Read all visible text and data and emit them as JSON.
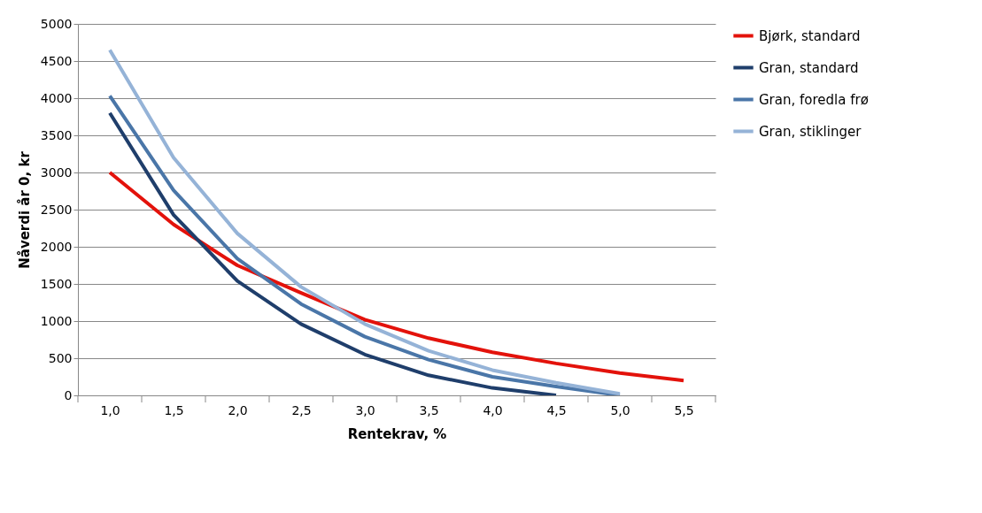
{
  "chart_data": {
    "type": "line",
    "xlabel": "Rentekrav, %",
    "ylabel": "Nåverdi år 0, kr",
    "categories": [
      "1,0",
      "1,5",
      "2,0",
      "2,5",
      "3,0",
      "3,5",
      "4,0",
      "4,5",
      "5,0",
      "5,5"
    ],
    "series": [
      {
        "name": "Bjørk, standard",
        "color": "#e3120b",
        "values": [
          3000,
          2300,
          1750,
          1380,
          1020,
          770,
          580,
          430,
          300,
          200
        ]
      },
      {
        "name": "Gran, standard",
        "color": "#1f3e6b",
        "values": [
          3800,
          2430,
          1540,
          960,
          550,
          270,
          100,
          0,
          null,
          null
        ]
      },
      {
        "name": "Gran, foredla frø",
        "color": "#4a76a8",
        "values": [
          4030,
          2760,
          1840,
          1230,
          790,
          480,
          250,
          120,
          0,
          null
        ]
      },
      {
        "name": "Gran, stiklinger",
        "color": "#95b3d7",
        "values": [
          4650,
          3200,
          2180,
          1460,
          960,
          600,
          340,
          170,
          20,
          null
        ]
      }
    ],
    "ylim": [
      0,
      5000
    ],
    "yticks": [
      0,
      500,
      1000,
      1500,
      2000,
      2500,
      3000,
      3500,
      4000,
      4500,
      5000
    ],
    "grid": "y",
    "legend": "right",
    "marker": "none",
    "line_style": "solid"
  }
}
